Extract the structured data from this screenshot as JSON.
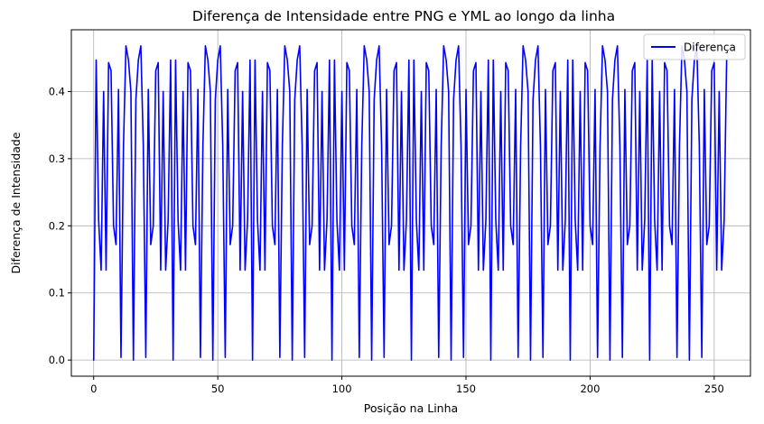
{
  "chart_data": {
    "type": "line",
    "title": "Diferença de Intensidade entre PNG e YML ao longo da linha",
    "xlabel": "Posição na Linha",
    "ylabel": "Diferença de Intensidade",
    "xlim": [
      -9.0,
      264.6
    ],
    "ylim": [
      -0.024,
      0.492
    ],
    "xticks": [
      0,
      50,
      100,
      150,
      200,
      250
    ],
    "xtick_labels": [
      "0",
      "50",
      "100",
      "150",
      "200",
      "250"
    ],
    "yticks": [
      0.0,
      0.1,
      0.2,
      0.3,
      0.4
    ],
    "ytick_labels": [
      "0.0",
      "0.1",
      "0.2",
      "0.3",
      "0.4"
    ],
    "grid": true,
    "legend": {
      "placement": "top-right",
      "entries": [
        "Diferença"
      ]
    },
    "series": [
      {
        "name": "Diferença",
        "color": "#0000ff",
        "x_start": 0,
        "x_step": 1,
        "values": [
          0.0,
          0.447,
          0.208,
          0.134,
          0.4,
          0.134,
          0.443,
          0.431,
          0.2,
          0.172,
          0.403,
          0.004,
          0.318,
          0.468,
          0.447,
          0.4,
          0.0,
          0.388,
          0.447,
          0.468,
          0.318,
          0.004,
          0.403,
          0.172,
          0.2,
          0.431,
          0.443,
          0.134,
          0.4,
          0.134,
          0.208,
          0.447,
          0.0,
          0.447,
          0.208,
          0.134,
          0.4,
          0.134,
          0.443,
          0.431,
          0.2,
          0.172,
          0.403,
          0.004,
          0.318,
          0.468,
          0.447,
          0.4,
          0.0,
          0.388,
          0.447,
          0.468,
          0.318,
          0.004,
          0.403,
          0.172,
          0.2,
          0.431,
          0.443,
          0.134,
          0.4,
          0.134,
          0.208,
          0.447,
          0.0,
          0.447,
          0.208,
          0.134,
          0.4,
          0.134,
          0.443,
          0.431,
          0.2,
          0.172,
          0.403,
          0.004,
          0.318,
          0.468,
          0.447,
          0.4,
          0.0,
          0.388,
          0.447,
          0.468,
          0.318,
          0.004,
          0.403,
          0.172,
          0.2,
          0.431,
          0.443,
          0.134,
          0.4,
          0.134,
          0.208,
          0.447,
          0.0,
          0.447,
          0.208,
          0.134,
          0.4,
          0.134,
          0.443,
          0.431,
          0.2,
          0.172,
          0.403,
          0.004,
          0.318,
          0.468,
          0.447,
          0.4,
          0.0,
          0.388,
          0.447,
          0.468,
          0.318,
          0.004,
          0.403,
          0.172,
          0.2,
          0.431,
          0.443,
          0.134,
          0.4,
          0.134,
          0.208,
          0.447,
          0.0,
          0.447,
          0.208,
          0.134,
          0.4,
          0.134,
          0.443,
          0.431,
          0.2,
          0.172,
          0.403,
          0.004,
          0.318,
          0.468,
          0.447,
          0.4,
          0.0,
          0.388,
          0.447,
          0.468,
          0.318,
          0.004,
          0.403,
          0.172,
          0.2,
          0.431,
          0.443,
          0.134,
          0.4,
          0.134,
          0.208,
          0.447,
          0.0,
          0.447,
          0.208,
          0.134,
          0.4,
          0.134,
          0.443,
          0.431,
          0.2,
          0.172,
          0.403,
          0.004,
          0.318,
          0.468,
          0.447,
          0.4,
          0.0,
          0.388,
          0.447,
          0.468,
          0.318,
          0.004,
          0.403,
          0.172,
          0.2,
          0.431,
          0.443,
          0.134,
          0.4,
          0.134,
          0.208,
          0.447,
          0.0,
          0.447,
          0.208,
          0.134,
          0.4,
          0.134,
          0.443,
          0.431,
          0.2,
          0.172,
          0.403,
          0.004,
          0.318,
          0.468,
          0.447,
          0.4,
          0.0,
          0.388,
          0.447,
          0.468,
          0.318,
          0.004,
          0.403,
          0.172,
          0.2,
          0.431,
          0.443,
          0.134,
          0.4,
          0.134,
          0.208,
          0.447,
          0.0,
          0.447,
          0.208,
          0.134,
          0.4,
          0.134,
          0.443,
          0.431,
          0.2,
          0.172,
          0.403,
          0.004,
          0.318,
          0.468,
          0.447,
          0.4,
          0.0,
          0.388,
          0.447,
          0.468,
          0.318,
          0.004,
          0.403,
          0.172,
          0.2,
          0.431,
          0.443,
          0.134,
          0.4,
          0.134,
          0.208,
          0.447
        ]
      }
    ]
  }
}
